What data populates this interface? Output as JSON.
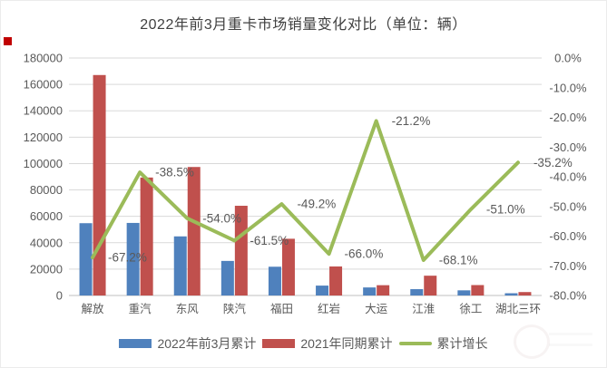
{
  "chart_data": {
    "type": "combo-bar-line",
    "title": "2022年前3月重卡市场销量变化对比（单位：辆）",
    "categories": [
      "解放",
      "重汽",
      "东风",
      "陕汽",
      "福田",
      "红岩",
      "大运",
      "江淮",
      "徐工",
      "湖北三环"
    ],
    "series": [
      {
        "name": "2022年前3月累计",
        "type": "bar",
        "axis": "left",
        "color": "#4F81BD",
        "values": [
          54800,
          55000,
          44800,
          26200,
          21800,
          7500,
          6100,
          4800,
          3900,
          1700
        ]
      },
      {
        "name": "2021年同期累计",
        "type": "bar",
        "axis": "left",
        "color": "#C0504D",
        "values": [
          167100,
          89400,
          97400,
          68000,
          43000,
          22000,
          7800,
          15000,
          7900,
          2600
        ]
      },
      {
        "name": "累计增长",
        "type": "line",
        "axis": "right",
        "color": "#9BBB59",
        "values": [
          -67.2,
          -38.5,
          -54.0,
          -61.5,
          -49.2,
          -66.0,
          -21.2,
          -68.1,
          -51.0,
          -35.2
        ],
        "point_labels": [
          "-67.2%",
          "-38.5%",
          "-54.0%",
          "-61.5%",
          "-49.2%",
          "-66.0%",
          "-21.2%",
          "-68.1%",
          "-51.0%",
          "-35.2%"
        ]
      }
    ],
    "left_axis": {
      "min": 0,
      "max": 180000,
      "step": 20000,
      "tick_labels": [
        "180000",
        "160000",
        "140000",
        "120000",
        "100000",
        "80000",
        "60000",
        "40000",
        "20000",
        "0"
      ]
    },
    "right_axis": {
      "min": -80,
      "max": 0,
      "step": 10,
      "tick_labels": [
        "0.0%",
        "-10.0%",
        "-20.0%",
        "-30.0%",
        "-40.0%",
        "-50.0%",
        "-60.0%",
        "-70.0%",
        "-80.0%"
      ]
    },
    "grid": true,
    "legend_position": "bottom"
  },
  "styles": {
    "title_color": "#404040",
    "axis_text_color": "#595959",
    "gridline_color": "#d9d9d9",
    "baseline_color": "#bfbfbf",
    "watermark_red": "#C00000"
  }
}
